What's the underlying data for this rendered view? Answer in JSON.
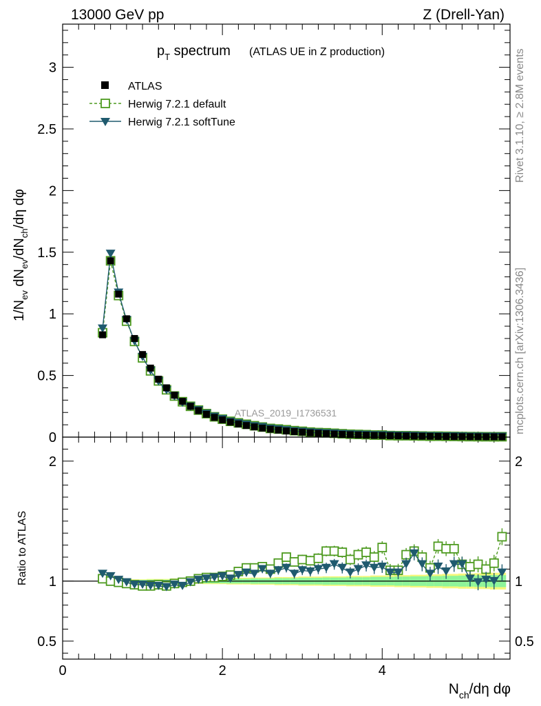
{
  "header": {
    "left": "13000 GeV pp",
    "right": "Z (Drell-Yan)"
  },
  "title": {
    "main": "p",
    "sub": "T",
    "rest": " spectrum",
    "detail": "(ATLAS UE in Z production)"
  },
  "side_labels": {
    "rivet": "Rivet 3.1.10, ≥ 2.8M events",
    "mcplots": "mcplots.cern.ch [arXiv:1306.3436]"
  },
  "watermark": "ATLAS_2019_I1736531",
  "axes": {
    "ylabel_main": "1/N_ev dN_ev/dN_ch/dη dφ",
    "ylabel_ratio": "Ratio to ATLAS",
    "xlabel": "N_ch/dη dφ"
  },
  "legend": [
    {
      "label": "ATLAS",
      "style": "data"
    },
    {
      "label": "Herwig 7.2.1 default",
      "style": "default"
    },
    {
      "label": "Herwig 7.2.1 softTune",
      "style": "soft"
    }
  ],
  "colors": {
    "data": "#000000",
    "default": "#4d9a1f",
    "soft": "#1f5a6e",
    "band_inner": "#8ef59a",
    "band_outer": "#f5f77a"
  },
  "chart_data": {
    "type": "scatter",
    "x": [
      0.5,
      0.6,
      0.7,
      0.8,
      0.9,
      1.0,
      1.1,
      1.2,
      1.3,
      1.4,
      1.5,
      1.6,
      1.7,
      1.8,
      1.9,
      2.0,
      2.1,
      2.2,
      2.3,
      2.4,
      2.5,
      2.6,
      2.7,
      2.8,
      2.9,
      3.0,
      3.1,
      3.2,
      3.3,
      3.4,
      3.5,
      3.6,
      3.7,
      3.8,
      3.9,
      4.0,
      4.1,
      4.2,
      4.3,
      4.4,
      4.5,
      4.6,
      4.7,
      4.8,
      4.9,
      5.0,
      5.1,
      5.2,
      5.3,
      5.4,
      5.5
    ],
    "series": [
      {
        "name": "ATLAS",
        "values": [
          0.83,
          1.43,
          1.16,
          0.96,
          0.8,
          0.67,
          0.56,
          0.47,
          0.4,
          0.34,
          0.29,
          0.25,
          0.215,
          0.185,
          0.16,
          0.14,
          0.122,
          0.107,
          0.094,
          0.083,
          0.073,
          0.064,
          0.057,
          0.05,
          0.045,
          0.04,
          0.035,
          0.031,
          0.028,
          0.025,
          0.022,
          0.02,
          0.018,
          0.016,
          0.014,
          0.013,
          0.0115,
          0.0103,
          0.0092,
          0.0082,
          0.0073,
          0.0065,
          0.0058,
          0.0052,
          0.0046,
          0.0041,
          0.0036,
          0.0032,
          0.0029,
          0.0026,
          0.0023
        ]
      },
      {
        "name": "Herwig 7.2.1 default",
        "ratio": [
          1.02,
          1.0,
          0.99,
          0.98,
          0.97,
          0.96,
          0.96,
          0.97,
          0.96,
          0.98,
          0.99,
          1.0,
          1.02,
          1.03,
          1.03,
          1.04,
          1.05,
          1.08,
          1.11,
          1.11,
          1.12,
          1.1,
          1.15,
          1.2,
          1.16,
          1.18,
          1.17,
          1.19,
          1.25,
          1.25,
          1.24,
          1.18,
          1.22,
          1.24,
          1.2,
          1.28,
          1.09,
          1.09,
          1.22,
          1.25,
          1.2,
          1.11,
          1.29,
          1.27,
          1.27,
          1.14,
          1.12,
          1.14,
          1.1,
          1.15,
          1.37
        ]
      },
      {
        "name": "Herwig 7.2.1 softTune",
        "ratio": [
          1.06,
          1.04,
          1.01,
          0.99,
          0.97,
          0.97,
          0.96,
          0.96,
          0.95,
          0.97,
          0.96,
          0.99,
          1.01,
          1.02,
          1.03,
          1.04,
          1.02,
          1.05,
          1.07,
          1.06,
          1.1,
          1.06,
          1.09,
          1.11,
          1.06,
          1.09,
          1.08,
          1.1,
          1.11,
          1.14,
          1.11,
          1.07,
          1.1,
          1.13,
          1.11,
          1.12,
          1.07,
          1.07,
          1.14,
          1.23,
          1.14,
          1.06,
          1.12,
          1.08,
          1.14,
          1.14,
          1.02,
          0.99,
          1.01,
          1.0,
          1.07
        ]
      }
    ],
    "main": {
      "xlim": [
        0,
        5.6
      ],
      "ylim": [
        0,
        3.35
      ],
      "yticks": [
        0,
        0.5,
        1,
        1.5,
        2,
        2.5,
        3
      ],
      "ytick_labels": [
        "0",
        "0.5",
        "1",
        "1.5",
        "2",
        "2.5",
        "3"
      ]
    },
    "ratio": {
      "xlim": [
        0,
        5.6
      ],
      "ylim": [
        0.35,
        2.2
      ],
      "yticks": [
        0.5,
        1,
        2
      ],
      "ytick_labels": [
        "0.5",
        "1",
        "2"
      ]
    },
    "xticks": [
      0,
      2,
      4
    ],
    "xtick_labels": [
      "0",
      "2",
      "4"
    ],
    "bands": {
      "inner": [
        0.01,
        0.01,
        0.01,
        0.01,
        0.01,
        0.01,
        0.012,
        0.012,
        0.012,
        0.015,
        0.015,
        0.015,
        0.015,
        0.018,
        0.018,
        0.018,
        0.02,
        0.02,
        0.02,
        0.022,
        0.022,
        0.022,
        0.025,
        0.025,
        0.025,
        0.028,
        0.028,
        0.028,
        0.03,
        0.03,
        0.03,
        0.032,
        0.032,
        0.032,
        0.035,
        0.035,
        0.035,
        0.038,
        0.038,
        0.04,
        0.04,
        0.042,
        0.042,
        0.044,
        0.044,
        0.046,
        0.046,
        0.048,
        0.048,
        0.05,
        0.05
      ],
      "outer": [
        0.015,
        0.015,
        0.015,
        0.015,
        0.015,
        0.015,
        0.018,
        0.018,
        0.018,
        0.022,
        0.022,
        0.022,
        0.022,
        0.025,
        0.025,
        0.025,
        0.028,
        0.028,
        0.028,
        0.03,
        0.03,
        0.03,
        0.034,
        0.034,
        0.034,
        0.038,
        0.038,
        0.038,
        0.04,
        0.04,
        0.04,
        0.043,
        0.043,
        0.043,
        0.047,
        0.047,
        0.047,
        0.05,
        0.05,
        0.053,
        0.053,
        0.056,
        0.056,
        0.06,
        0.06,
        0.063,
        0.063,
        0.066,
        0.066,
        0.07,
        0.07
      ]
    }
  }
}
